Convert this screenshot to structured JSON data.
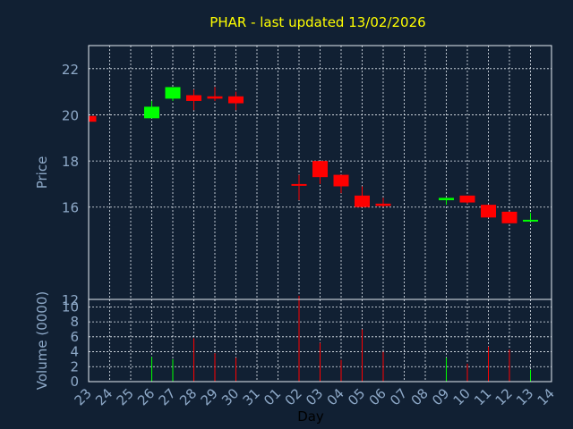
{
  "chart_data": {
    "type": "candlestick",
    "title": "PHAR - last updated 13/02/2026",
    "xlabel": "Day",
    "price_ylabel": "Price",
    "volume_ylabel": "Volume (0000)",
    "x_tick_labels": [
      "23",
      "24",
      "25",
      "26",
      "27",
      "28",
      "29",
      "30",
      "31",
      "01",
      "02",
      "03",
      "04",
      "05",
      "06",
      "07",
      "08",
      "09",
      "10",
      "11",
      "12",
      "13",
      "14"
    ],
    "price_yticks": [
      12,
      16,
      18,
      20,
      22
    ],
    "price_ylim": [
      12,
      23
    ],
    "volume_yticks": [
      0,
      2,
      4,
      6,
      8,
      10
    ],
    "volume_ylim": [
      0,
      11
    ],
    "colors": {
      "up": "#00ff00",
      "down": "#ff0000",
      "background": "#112033",
      "grid": "#e8eef5"
    },
    "candles": [
      {
        "day": "23",
        "open": 19.95,
        "high": 19.95,
        "low": 19.7,
        "close": 19.7,
        "volume": 0
      },
      {
        "day": "26",
        "open": 19.85,
        "high": 20.6,
        "low": 19.85,
        "close": 20.35,
        "volume": 3.3
      },
      {
        "day": "27",
        "open": 20.7,
        "high": 21.2,
        "low": 20.6,
        "close": 21.2,
        "volume": 3.0
      },
      {
        "day": "28",
        "open": 20.85,
        "high": 21.1,
        "low": 20.2,
        "close": 20.6,
        "volume": 5.8
      },
      {
        "day": "29",
        "open": 20.8,
        "high": 21.2,
        "low": 20.6,
        "close": 20.7,
        "volume": 3.8
      },
      {
        "day": "30",
        "open": 20.8,
        "high": 21.0,
        "low": 20.2,
        "close": 20.5,
        "volume": 3.2
      },
      {
        "day": "02",
        "open": 17.0,
        "high": 17.4,
        "low": 16.3,
        "close": 16.95,
        "volume": 11.5
      },
      {
        "day": "03",
        "open": 18.0,
        "high": 18.0,
        "low": 17.0,
        "close": 17.3,
        "volume": 5.2
      },
      {
        "day": "04",
        "open": 17.4,
        "high": 17.4,
        "low": 16.6,
        "close": 16.9,
        "volume": 2.9
      },
      {
        "day": "05",
        "open": 16.5,
        "high": 16.9,
        "low": 16.0,
        "close": 16.0,
        "volume": 7.0
      },
      {
        "day": "06",
        "open": 16.15,
        "high": 16.4,
        "low": 16.0,
        "close": 16.05,
        "volume": 4.0
      },
      {
        "day": "09",
        "open": 16.3,
        "high": 16.4,
        "low": 16.1,
        "close": 16.4,
        "volume": 3.2
      },
      {
        "day": "10",
        "open": 16.5,
        "high": 16.5,
        "low": 16.15,
        "close": 16.2,
        "volume": 2.4
      },
      {
        "day": "11",
        "open": 16.1,
        "high": 16.1,
        "low": 15.55,
        "close": 15.55,
        "volume": 4.7
      },
      {
        "day": "12",
        "open": 15.8,
        "high": 15.8,
        "low": 15.3,
        "close": 15.3,
        "volume": 4.3
      },
      {
        "day": "13",
        "open": 15.4,
        "high": 15.75,
        "low": 15.4,
        "close": 15.45,
        "volume": 1.6
      }
    ]
  }
}
